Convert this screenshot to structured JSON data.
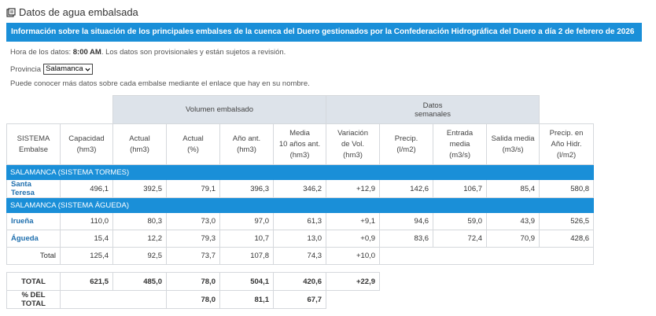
{
  "heading": {
    "icon": "document-icon",
    "title": "Datos de agua embalsada"
  },
  "banner": "Información sobre la situación de los principales embalses de la cuenca del Duero gestionados por la Confederación Hidrográfica del Duero a día 2 de febrero de 2026",
  "info": {
    "prefix": "Hora de los datos:",
    "time": "8:00 AM",
    "suffix": ". Los datos son provisionales y están sujetos a revisión."
  },
  "province": {
    "label": "Provincia",
    "selected": "Salamanca"
  },
  "hint": "Puede conocer más datos sobre cada embalse mediante el enlace que hay en su nombre.",
  "groups": {
    "volumen": "Volumen embalsado",
    "datos_1": "Datos",
    "datos_2": "semanales"
  },
  "columns": [
    [
      "SISTEMA",
      "Embalse"
    ],
    [
      "Capacidad",
      "(hm3)"
    ],
    [
      "Actual",
      "(hm3)"
    ],
    [
      "Actual",
      "(%)"
    ],
    [
      "Año ant.",
      "(hm3)"
    ],
    [
      "Media",
      "10 años ant.",
      "(hm3)"
    ],
    [
      "Variación",
      "de Vol.",
      "(hm3)"
    ],
    [
      "Precip.",
      "(l/m2)"
    ],
    [
      "Entrada",
      "media",
      "(m3/s)"
    ],
    [
      "Salida media",
      "(m3/s)"
    ],
    [
      "Precip. en",
      "Año Hidr.",
      "(l/m2)"
    ]
  ],
  "sections": [
    {
      "title": "SALAMANCA (SISTEMA TORMES)",
      "rows": [
        {
          "name": "Santa Teresa",
          "values": [
            "496,1",
            "392,5",
            "79,1",
            "396,3",
            "346,2",
            "+12,9",
            "142,6",
            "106,7",
            "85,4",
            "580,8"
          ]
        }
      ]
    },
    {
      "title": "SALAMANCA (SISTEMA ÁGUEDA)",
      "rows": [
        {
          "name": "Irueña",
          "values": [
            "110,0",
            "80,3",
            "73,0",
            "97,0",
            "61,3",
            "+9,1",
            "94,6",
            "59,0",
            "43,9",
            "526,5"
          ]
        },
        {
          "name": "Águeda",
          "values": [
            "15,4",
            "12,2",
            "79,3",
            "10,7",
            "13,0",
            "+0,9",
            "83,6",
            "72,4",
            "70,9",
            "428,6"
          ]
        }
      ],
      "total": {
        "label": "Total",
        "values": [
          "125,4",
          "92,5",
          "73,7",
          "107,8",
          "74,3",
          "+10,0"
        ]
      }
    }
  ],
  "totals": {
    "total": {
      "label": "TOTAL",
      "values": [
        "621,5",
        "485,0",
        "78,0",
        "504,1",
        "420,6",
        "+22,9"
      ]
    },
    "percent": {
      "label": "% DEL TOTAL",
      "values": [
        "78,0",
        "81,1",
        "67,7"
      ]
    }
  }
}
